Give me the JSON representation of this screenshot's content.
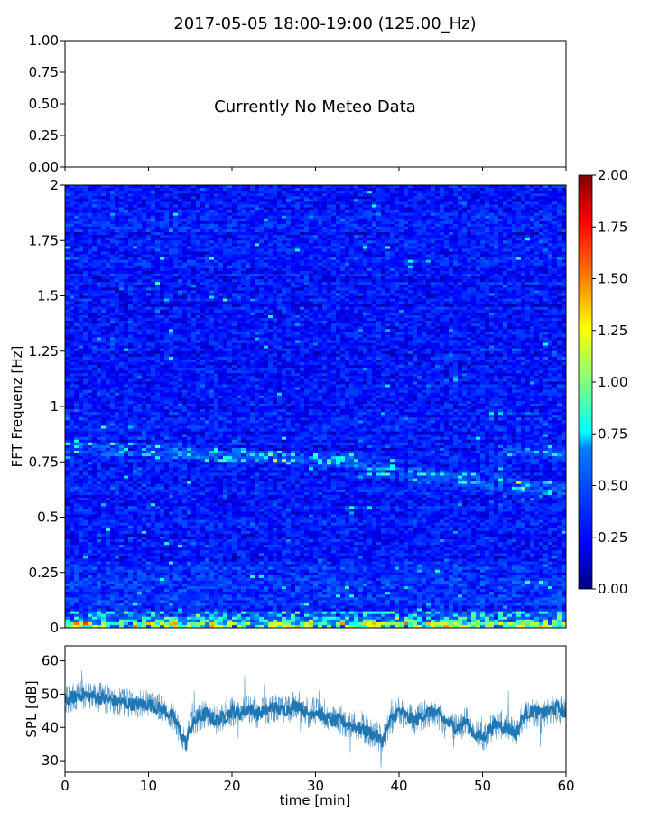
{
  "figure_title": "2017-05-05 18:00-19:00 (125.00_Hz)",
  "chart_data": [
    {
      "type": "line",
      "panel": "meteo",
      "annotation": "Currently No Meteo Data",
      "ylim": [
        0,
        1
      ],
      "xlim": [
        0,
        60
      ],
      "y_ticks": [
        "0.00",
        "0.25",
        "0.50",
        "0.75",
        "1.00"
      ],
      "x_ticks_labeled": false,
      "series": []
    },
    {
      "type": "heatmap",
      "panel": "spectrogram",
      "ylabel": "FFT Frequenz [Hz]",
      "xlim": [
        0,
        60
      ],
      "ylim": [
        0,
        2
      ],
      "y_ticks": [
        "0",
        "0.25",
        "0.5",
        "0.75",
        "1",
        "1.25",
        "1.5",
        "1.75",
        "2"
      ],
      "colormap": "jet",
      "colorbar": {
        "range": [
          0,
          2
        ],
        "ticks": [
          "0.00",
          "0.25",
          "0.50",
          "0.75",
          "1.00",
          "1.25",
          "1.50",
          "1.75",
          "2.00"
        ]
      },
      "colors": {
        "c0": "#00007f",
        "c1": "#0000ff",
        "c2": "#007fff",
        "c3": "#00ffff",
        "c4": "#7fff7f",
        "c5": "#ffff00",
        "c6": "#ff7f00",
        "c7": "#ff0000",
        "c8": "#7f0000"
      }
    },
    {
      "type": "line",
      "panel": "spl",
      "xlabel": "time [min]",
      "ylabel": "SPL [dB]",
      "xlim": [
        0,
        60
      ],
      "ylim": [
        26.5,
        64.5
      ],
      "x_ticks": [
        "0",
        "10",
        "20",
        "30",
        "40",
        "50",
        "60"
      ],
      "y_ticks": [
        "30",
        "40",
        "50",
        "60"
      ],
      "color": "#1f77b4",
      "series": [
        {
          "x": [
            0,
            2,
            4,
            6,
            8,
            10,
            11,
            12,
            13,
            14,
            14.5,
            15,
            16,
            17,
            18,
            19,
            20,
            21,
            22,
            23,
            24,
            25,
            26,
            27,
            28,
            29,
            30,
            31,
            32,
            33,
            34,
            35,
            36,
            37,
            38,
            39,
            40,
            41,
            42,
            43,
            44,
            45,
            46,
            47,
            48,
            49,
            50,
            51,
            52,
            53,
            54,
            55,
            56,
            57,
            58,
            59,
            60
          ],
          "y": [
            48,
            50,
            49,
            48,
            47,
            47,
            46,
            45,
            43,
            38,
            35,
            40,
            43,
            44,
            42,
            43,
            45,
            44,
            46,
            44,
            45,
            46,
            45,
            46,
            47,
            44,
            45,
            43,
            42,
            42,
            41,
            40,
            39,
            38,
            36,
            42,
            45,
            43,
            42,
            44,
            45,
            43,
            41,
            40,
            42,
            38,
            37,
            40,
            41,
            40,
            38,
            44,
            45,
            44,
            45,
            46,
            44
          ]
        }
      ]
    }
  ]
}
